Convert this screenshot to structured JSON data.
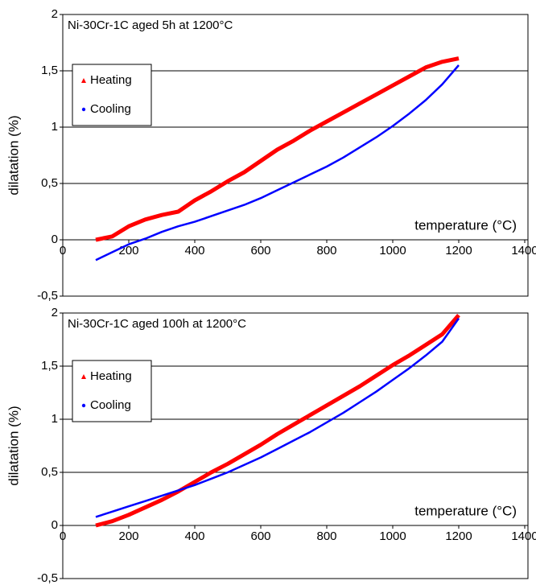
{
  "chart_data": [
    {
      "type": "line",
      "title": "Ni-30Cr-1C aged 5h at 1200°C",
      "x_label": "temperature (°C)",
      "y_label": "dilatation (%)",
      "x": [
        100,
        150,
        200,
        250,
        300,
        350,
        400,
        450,
        500,
        550,
        600,
        650,
        700,
        750,
        800,
        850,
        900,
        950,
        1000,
        1050,
        1100,
        1150,
        1200
      ],
      "series": [
        {
          "name": "Heating",
          "color": "#ff0000",
          "marker": "triangle",
          "values": [
            0,
            0.03,
            0.12,
            0.18,
            0.22,
            0.25,
            0.35,
            0.43,
            0.52,
            0.6,
            0.7,
            0.8,
            0.88,
            0.97,
            1.05,
            1.13,
            1.21,
            1.29,
            1.37,
            1.45,
            1.53,
            1.58,
            1.61
          ]
        },
        {
          "name": "Cooling",
          "color": "#0000ff",
          "marker": "circle",
          "values": [
            -0.18,
            -0.11,
            -0.04,
            0.01,
            0.07,
            0.12,
            0.16,
            0.21,
            0.26,
            0.31,
            0.37,
            0.44,
            0.51,
            0.58,
            0.65,
            0.73,
            0.82,
            0.91,
            1.01,
            1.12,
            1.24,
            1.38,
            1.55
          ]
        }
      ],
      "xlim": [
        0,
        1400
      ],
      "xticks": [
        0,
        200,
        400,
        600,
        800,
        1000,
        1200,
        1400
      ],
      "ylim": [
        -0.5,
        2
      ],
      "yticks": [
        {
          "value": -0.5,
          "label": "-0,5"
        },
        0,
        {
          "value": 0.5,
          "label": "0,5"
        },
        1,
        {
          "value": 1.5,
          "label": "1,5"
        },
        2
      ],
      "grid": true,
      "legend": "upper-left"
    },
    {
      "type": "line",
      "title": "Ni-30Cr-1C aged 100h at 1200°C",
      "x_label": "temperature (°C)",
      "y_label": "dilatation (%)",
      "x": [
        100,
        150,
        200,
        250,
        300,
        350,
        400,
        450,
        500,
        550,
        600,
        650,
        700,
        750,
        800,
        850,
        900,
        950,
        1000,
        1050,
        1100,
        1150,
        1200
      ],
      "series": [
        {
          "name": "Heating",
          "color": "#ff0000",
          "marker": "triangle",
          "values": [
            0,
            0.04,
            0.1,
            0.17,
            0.24,
            0.32,
            0.41,
            0.5,
            0.58,
            0.67,
            0.76,
            0.86,
            0.95,
            1.04,
            1.13,
            1.22,
            1.31,
            1.41,
            1.51,
            1.6,
            1.7,
            1.8,
            1.98
          ]
        },
        {
          "name": "Cooling",
          "color": "#0000ff",
          "marker": "circle",
          "values": [
            0.08,
            0.13,
            0.18,
            0.23,
            0.28,
            0.33,
            0.38,
            0.44,
            0.5,
            0.57,
            0.64,
            0.72,
            0.8,
            0.88,
            0.97,
            1.06,
            1.16,
            1.26,
            1.37,
            1.48,
            1.6,
            1.73,
            1.95
          ]
        }
      ],
      "xlim": [
        0,
        1400
      ],
      "xticks": [
        0,
        200,
        400,
        600,
        800,
        1000,
        1200,
        1400
      ],
      "ylim": [
        -0.5,
        2
      ],
      "yticks": [
        {
          "value": -0.5,
          "label": "-0,5"
        },
        0,
        {
          "value": 0.5,
          "label": "0,5"
        },
        1,
        {
          "value": 1.5,
          "label": "1,5"
        },
        2
      ],
      "grid": true,
      "legend": "upper-left"
    }
  ]
}
